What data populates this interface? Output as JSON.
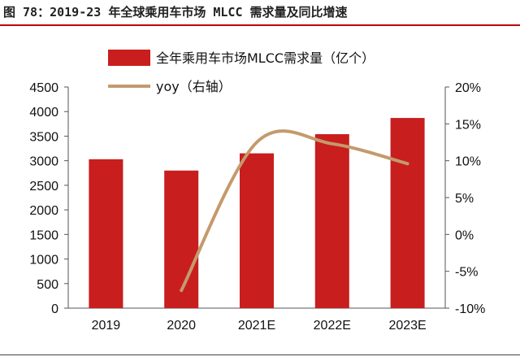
{
  "figure": {
    "title": "图 78：2019-23 年全球乘用车市场 MLCC 需求量及同比增速"
  },
  "colors": {
    "bar": "#c81e1e",
    "line": "#c49a6c",
    "rule": "#c00000"
  },
  "chart_data": {
    "type": "bar",
    "categories": [
      "2019",
      "2020",
      "2021E",
      "2022E",
      "2023E"
    ],
    "series": [
      {
        "name": "全年乘用车市场MLCC需求量（亿个）",
        "type": "bar",
        "axis": "left",
        "values": [
          3030,
          2800,
          3150,
          3540,
          3870
        ]
      },
      {
        "name": "yoy（右轴）",
        "type": "line",
        "axis": "right",
        "values": [
          null,
          -7.6,
          12.5,
          12.3,
          9.6
        ]
      }
    ],
    "y_left": {
      "min": 0,
      "max": 4500,
      "step": 500,
      "ticks": [
        "0",
        "500",
        "1000",
        "1500",
        "2000",
        "2500",
        "3000",
        "3500",
        "4000",
        "4500"
      ]
    },
    "y_right": {
      "min": -10,
      "max": 20,
      "step": 5,
      "ticks": [
        "-10%",
        "-5%",
        "0%",
        "5%",
        "10%",
        "15%",
        "20%"
      ]
    },
    "legend_placement": "top-center",
    "grid": false
  }
}
